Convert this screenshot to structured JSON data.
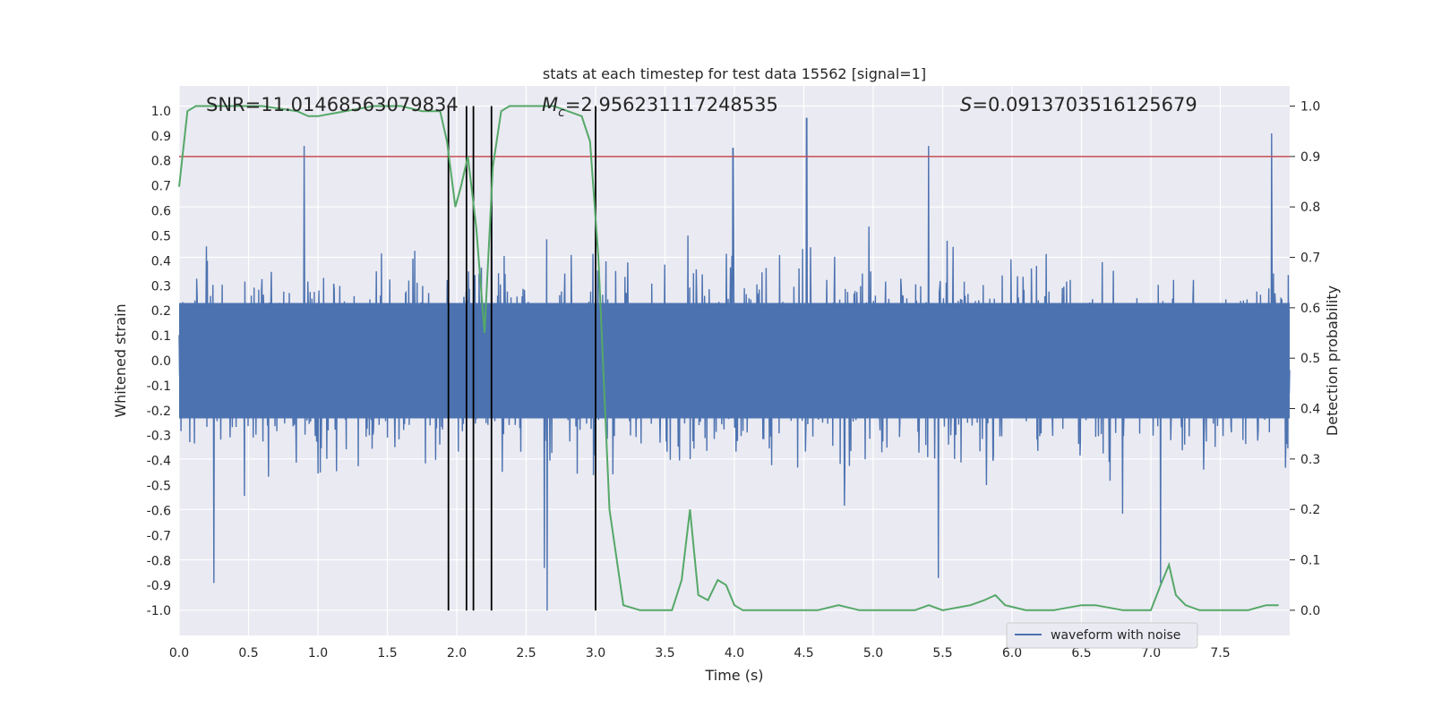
{
  "chart_data": {
    "type": "line",
    "title": "stats at each timestep for test data 15562 [signal=1]",
    "xlabel": "Time (s)",
    "ylabel": "Whitened strain",
    "y2label": "Detection probability",
    "xlim": [
      0.0,
      8.0
    ],
    "ylim": [
      -1.1,
      1.1
    ],
    "y2lim": [
      -0.05,
      1.04
    ],
    "xticks": [
      "0.0",
      "0.5",
      "1.0",
      "1.5",
      "2.0",
      "2.5",
      "3.0",
      "3.5",
      "4.0",
      "4.5",
      "5.0",
      "5.5",
      "6.0",
      "6.5",
      "7.0",
      "7.5"
    ],
    "yticks": [
      "1.0",
      "0.9",
      "0.8",
      "0.7",
      "0.6",
      "0.5",
      "0.4",
      "0.3",
      "0.2",
      "0.1",
      "0.0",
      "-0.1",
      "-0.2",
      "-0.3",
      "-0.4",
      "-0.5",
      "-0.6",
      "-0.7",
      "-0.8",
      "-0.9",
      "-1.0"
    ],
    "y2ticks": [
      "1.0",
      "0.9",
      "0.8",
      "0.7",
      "0.6",
      "0.5",
      "0.4",
      "0.3",
      "0.2",
      "0.1",
      "0.0"
    ],
    "grid": true,
    "annotations": {
      "snr": "SNR=11.01468563079834",
      "mc_symbol": "M",
      "mc_sub": "c",
      "mc_value": "=2.956231117248535",
      "s_symbol": "S",
      "s_value": "=0.0913703516125679"
    },
    "threshold": 0.9,
    "event_lines_x": [
      1.94,
      2.07,
      2.12,
      2.25,
      3.0
    ],
    "legend": {
      "label": "waveform with noise",
      "position": "lower-right"
    },
    "series": [
      {
        "name": "waveform with noise",
        "axis": "left",
        "color": "#4c72b0",
        "style": "noise",
        "typical_peak": 0.42,
        "spike_tops": [
          {
            "x": 0.9,
            "y": 0.86
          },
          {
            "x": 2.25,
            "y": 0.88
          },
          {
            "x": 3.99,
            "y": 0.85
          },
          {
            "x": 4.52,
            "y": 0.97
          },
          {
            "x": 5.4,
            "y": 0.86
          },
          {
            "x": 7.87,
            "y": 0.91
          }
        ],
        "spike_bottoms": [
          {
            "x": 0.25,
            "y": -0.89
          },
          {
            "x": 2.63,
            "y": -0.83
          },
          {
            "x": 2.65,
            "y": -1.0
          },
          {
            "x": 5.47,
            "y": -0.87
          },
          {
            "x": 7.07,
            "y": -0.89
          }
        ]
      },
      {
        "name": "detection probability",
        "axis": "right",
        "color": "#55a868",
        "x": [
          0.0,
          0.06,
          0.12,
          0.3,
          0.6,
          0.85,
          0.93,
          1.0,
          1.2,
          1.4,
          1.6,
          1.75,
          1.88,
          1.93,
          1.99,
          2.03,
          2.08,
          2.14,
          2.2,
          2.26,
          2.32,
          2.38,
          2.5,
          2.7,
          2.9,
          2.96,
          3.02,
          3.1,
          3.2,
          3.32,
          3.45,
          3.55,
          3.62,
          3.68,
          3.74,
          3.81,
          3.88,
          3.94,
          4.0,
          4.06,
          4.18,
          4.3,
          4.45,
          4.6,
          4.75,
          4.9,
          5.1,
          5.3,
          5.4,
          5.5,
          5.7,
          5.8,
          5.88,
          5.95,
          6.1,
          6.3,
          6.5,
          6.6,
          6.8,
          7.0,
          7.07,
          7.13,
          7.18,
          7.25,
          7.35,
          7.5,
          7.7,
          7.83,
          7.92
        ],
        "values": [
          0.84,
          0.99,
          1.0,
          1.0,
          1.0,
          0.99,
          0.98,
          0.98,
          0.99,
          1.0,
          1.0,
          0.99,
          0.99,
          0.93,
          0.8,
          0.84,
          0.9,
          0.76,
          0.55,
          0.88,
          0.99,
          1.0,
          1.0,
          1.0,
          0.98,
          0.93,
          0.7,
          0.2,
          0.01,
          0.0,
          0.0,
          0.0,
          0.06,
          0.2,
          0.03,
          0.02,
          0.06,
          0.05,
          0.01,
          0.0,
          0.0,
          0.0,
          0.0,
          0.0,
          0.01,
          0.0,
          0.0,
          0.0,
          0.01,
          0.0,
          0.01,
          0.02,
          0.03,
          0.01,
          0.0,
          0.0,
          0.01,
          0.01,
          0.0,
          0.0,
          0.05,
          0.09,
          0.03,
          0.01,
          0.0,
          0.0,
          0.0,
          0.01,
          0.01
        ]
      }
    ]
  }
}
